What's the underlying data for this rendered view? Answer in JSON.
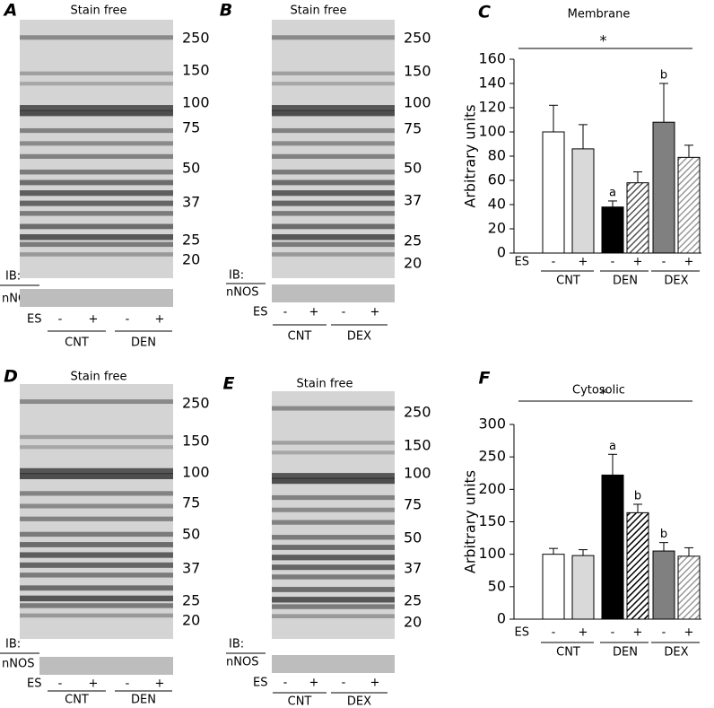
{
  "gels": [
    {
      "panel": "A",
      "title": "Stain free",
      "markers": [
        250,
        150,
        100,
        75,
        50,
        37,
        25,
        20
      ],
      "blot_label": "IB:",
      "protein": "nNOS",
      "row_label": "ES",
      "lanes": [
        "-",
        "+",
        "-",
        "+"
      ],
      "groups": [
        "CNT",
        "DEN"
      ]
    },
    {
      "panel": "B",
      "title": "Stain free",
      "markers": [
        250,
        150,
        100,
        75,
        50,
        37,
        25,
        20
      ],
      "blot_label": "IB:",
      "protein": "nNOS",
      "row_label": "ES",
      "lanes": [
        "-",
        "+",
        "-",
        "+"
      ],
      "groups": [
        "CNT",
        "DEX"
      ]
    },
    {
      "panel": "D",
      "title": "Stain free",
      "markers": [
        250,
        150,
        100,
        75,
        50,
        37,
        25,
        20
      ],
      "blot_label": "IB:",
      "protein": "nNOS",
      "row_label": "ES",
      "lanes": [
        "-",
        "+",
        "-",
        "+"
      ],
      "groups": [
        "CNT",
        "DEN"
      ]
    },
    {
      "panel": "E",
      "title": "Stain free",
      "markers": [
        250,
        150,
        100,
        75,
        50,
        37,
        25,
        20
      ],
      "blot_label": "IB:",
      "protein": "nNOS",
      "row_label": "ES",
      "lanes": [
        "-",
        "+",
        "-",
        "+"
      ],
      "groups": [
        "CNT",
        "DEX"
      ]
    }
  ],
  "chart_data": [
    {
      "type": "bar",
      "panel": "C",
      "title": "Membrane",
      "y_label": "Arbitrary units",
      "row_label": "ES",
      "categories": [
        "-",
        "+",
        "-",
        "+",
        "-",
        "+"
      ],
      "groups": [
        "CNT",
        "DEN",
        "DEX"
      ],
      "values": [
        100,
        86,
        38,
        58,
        108,
        79
      ],
      "errors": [
        22,
        20,
        5,
        9,
        32,
        10
      ],
      "bar_labels": [
        null,
        null,
        "a",
        null,
        "b",
        null
      ],
      "significance": "*",
      "colors": [
        "#ffffff",
        "#d9d9d9",
        "#000000",
        "#555555",
        "#808080",
        "#999999"
      ],
      "hatched": [
        false,
        false,
        false,
        true,
        false,
        true
      ],
      "ylim": [
        0,
        160
      ],
      "yticks": [
        0,
        20,
        40,
        60,
        80,
        100,
        120,
        140,
        160
      ]
    },
    {
      "type": "bar",
      "panel": "F",
      "title": "Cytosolic",
      "y_label": "Arbitrary units",
      "row_label": "ES",
      "categories": [
        "-",
        "+",
        "-",
        "+",
        "-",
        "+"
      ],
      "groups": [
        "CNT",
        "DEN",
        "DEX"
      ],
      "values": [
        100,
        98,
        222,
        164,
        105,
        97
      ],
      "errors": [
        9,
        9,
        32,
        13,
        13,
        13
      ],
      "bar_labels": [
        null,
        null,
        "a",
        "b",
        "b",
        null
      ],
      "significance": "*",
      "colors": [
        "#ffffff",
        "#d9d9d9",
        "#000000",
        "#000000",
        "#808080",
        "#999999"
      ],
      "hatched": [
        false,
        false,
        false,
        true,
        false,
        true
      ],
      "ylim": [
        0,
        300
      ],
      "yticks": [
        0,
        50,
        100,
        150,
        200,
        250,
        300
      ]
    }
  ]
}
